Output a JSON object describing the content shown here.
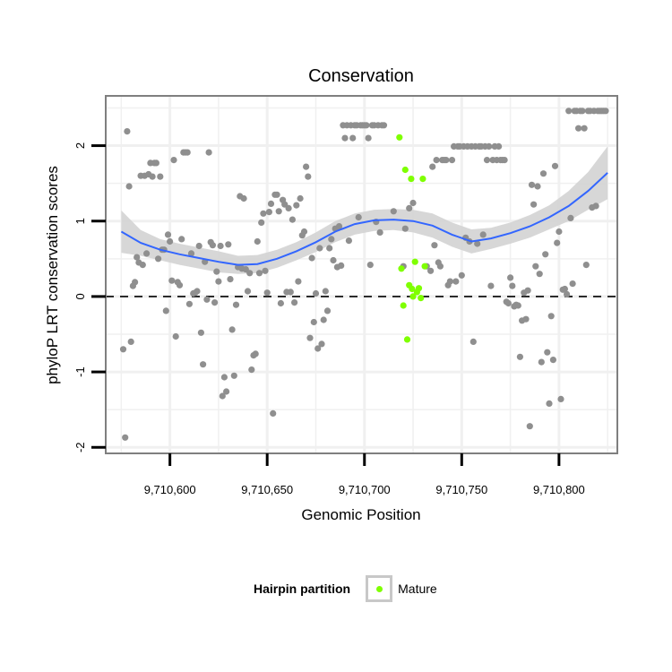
{
  "chart_data": {
    "type": "scatter",
    "title": "Conservation",
    "xlabel": "Genomic Position",
    "ylabel": "phyloP LRT conservation scores",
    "xlim": [
      9710567,
      9710830
    ],
    "ylim": [
      -2.08,
      2.66
    ],
    "x_ticks": [
      9710600,
      9710650,
      9710700,
      9710750,
      9710800
    ],
    "x_tick_labels": [
      "9,710,600",
      "9,710,650",
      "9,710,700",
      "9,710,750",
      "9,710,800"
    ],
    "y_ticks": [
      -2,
      -1,
      0,
      1,
      2
    ],
    "y_tick_labels": [
      "-2",
      "-1",
      "0",
      "1",
      "2"
    ],
    "grid": true,
    "reference_line": 0,
    "legend": {
      "title": "Hairpin partition",
      "position": "bottom",
      "entries": [
        "Mature"
      ]
    },
    "colors": {
      "background_points": "#8f8f8f",
      "mature": "#7fff00",
      "smooth_line": "#3366ff",
      "ribbon": "#d3d3d3",
      "grid": "#f0f0f0"
    },
    "series": [
      {
        "values": [
          [
            9710576,
            -0.7
          ],
          [
            9710577,
            -1.87
          ],
          [
            9710578,
            2.19
          ],
          [
            9710579,
            1.46
          ],
          [
            9710580,
            -0.6
          ],
          [
            9710581,
            0.14
          ],
          [
            9710582,
            0.19
          ],
          [
            9710583,
            0.52
          ],
          [
            9710584,
            0.45
          ],
          [
            9710585,
            1.6
          ],
          [
            9710586,
            0.42
          ],
          [
            9710587,
            1.6
          ],
          [
            9710588,
            0.57
          ],
          [
            9710589,
            1.62
          ],
          [
            9710590,
            1.77
          ],
          [
            9710591,
            1.59
          ],
          [
            9710592,
            1.77
          ],
          [
            9710593,
            1.77
          ],
          [
            9710594,
            0.5
          ],
          [
            9710595,
            1.59
          ],
          [
            9710596,
            0.62
          ],
          [
            9710597,
            0.62
          ],
          [
            9710598,
            -0.19
          ],
          [
            9710599,
            0.82
          ],
          [
            9710600,
            0.73
          ],
          [
            9710601,
            0.21
          ],
          [
            9710602,
            1.81
          ],
          [
            9710603,
            -0.53
          ],
          [
            9710604,
            0.19
          ],
          [
            9710605,
            0.15
          ],
          [
            9710606,
            0.76
          ],
          [
            9710607,
            1.91
          ],
          [
            9710608,
            1.91
          ],
          [
            9710609,
            1.91
          ],
          [
            9710610,
            -0.1
          ],
          [
            9710611,
            0.57
          ],
          [
            9710612,
            0.04
          ],
          [
            9710613,
            0.05
          ],
          [
            9710614,
            0.07
          ],
          [
            9710615,
            0.67
          ],
          [
            9710616,
            -0.48
          ],
          [
            9710617,
            -0.9
          ],
          [
            9710618,
            0.46
          ],
          [
            9710619,
            -0.04
          ],
          [
            9710620,
            1.91
          ],
          [
            9710621,
            0.72
          ],
          [
            9710622,
            0.68
          ],
          [
            9710623,
            -0.08
          ],
          [
            9710624,
            0.33
          ],
          [
            9710625,
            0.2
          ],
          [
            9710626,
            0.67
          ],
          [
            9710627,
            -1.32
          ],
          [
            9710628,
            -1.07
          ],
          [
            9710629,
            -1.26
          ],
          [
            9710630,
            0.69
          ],
          [
            9710631,
            0.23
          ],
          [
            9710632,
            -0.44
          ],
          [
            9710633,
            -1.05
          ],
          [
            9710634,
            -0.11
          ],
          [
            9710635,
            0.39
          ],
          [
            9710636,
            1.33
          ],
          [
            9710637,
            0.37
          ],
          [
            9710638,
            1.3
          ],
          [
            9710639,
            0.36
          ],
          [
            9710640,
            0.07
          ],
          [
            9710641,
            0.31
          ],
          [
            9710642,
            -0.97
          ],
          [
            9710643,
            -0.78
          ],
          [
            9710644,
            -0.76
          ],
          [
            9710645,
            0.73
          ],
          [
            9710646,
            0.31
          ],
          [
            9710647,
            0.98
          ],
          [
            9710648,
            1.1
          ],
          [
            9710649,
            0.34
          ],
          [
            9710650,
            0.05
          ],
          [
            9710651,
            1.12
          ],
          [
            9710652,
            1.23
          ],
          [
            9710653,
            -1.55
          ],
          [
            9710654,
            1.35
          ],
          [
            9710655,
            1.35
          ],
          [
            9710656,
            1.13
          ],
          [
            9710657,
            -0.09
          ],
          [
            9710658,
            1.28
          ],
          [
            9710659,
            1.22
          ],
          [
            9710660,
            0.06
          ],
          [
            9710661,
            1.17
          ],
          [
            9710662,
            0.06
          ],
          [
            9710663,
            1.02
          ],
          [
            9710664,
            -0.08
          ],
          [
            9710665,
            1.21
          ],
          [
            9710666,
            0.2
          ],
          [
            9710667,
            1.3
          ],
          [
            9710668,
            0.81
          ],
          [
            9710669,
            0.86
          ],
          [
            9710670,
            1.72
          ],
          [
            9710671,
            1.59
          ],
          [
            9710672,
            -0.55
          ],
          [
            9710673,
            0.51
          ],
          [
            9710674,
            -0.34
          ],
          [
            9710675,
            0.04
          ],
          [
            9710676,
            -0.69
          ],
          [
            9710677,
            0.64
          ],
          [
            9710678,
            -0.63
          ],
          [
            9710679,
            -0.31
          ],
          [
            9710680,
            0.07
          ],
          [
            9710681,
            -0.19
          ],
          [
            9710682,
            0.64
          ],
          [
            9710683,
            0.76
          ],
          [
            9710684,
            0.48
          ],
          [
            9710685,
            0.9
          ],
          [
            9710686,
            0.39
          ],
          [
            9710687,
            0.93
          ],
          [
            9710688,
            0.41
          ],
          [
            9710689,
            2.27
          ],
          [
            9710690,
            2.1
          ],
          [
            9710691,
            2.27
          ],
          [
            9710692,
            0.74
          ],
          [
            9710693,
            2.27
          ],
          [
            9710694,
            2.1
          ],
          [
            9710695,
            2.27
          ],
          [
            9710696,
            2.27
          ],
          [
            9710697,
            1.05
          ],
          [
            9710698,
            2.27
          ],
          [
            9710699,
            2.27
          ],
          [
            9710700,
            2.27
          ],
          [
            9710701,
            2.27
          ],
          [
            9710702,
            2.1
          ],
          [
            9710703,
            0.42
          ],
          [
            9710704,
            2.27
          ],
          [
            9710705,
            2.27
          ],
          [
            9710706,
            0.99
          ],
          [
            9710707,
            2.27
          ],
          [
            9710708,
            0.85
          ],
          [
            9710709,
            2.27
          ],
          [
            9710710,
            2.27
          ],
          [
            9710715,
            1.13
          ],
          [
            9710720,
            0.4
          ],
          [
            9710721,
            0.9
          ],
          [
            9710723,
            1.17
          ],
          [
            9710725,
            1.24
          ],
          [
            9710732,
            0.4
          ],
          [
            9710734,
            0.34
          ],
          [
            9710735,
            1.72
          ],
          [
            9710736,
            0.68
          ],
          [
            9710737,
            1.81
          ],
          [
            9710738,
            0.45
          ],
          [
            9710739,
            0.4
          ],
          [
            9710740,
            1.81
          ],
          [
            9710741,
            1.81
          ],
          [
            9710742,
            1.81
          ],
          [
            9710743,
            0.15
          ],
          [
            9710744,
            0.2
          ],
          [
            9710745,
            1.81
          ],
          [
            9710746,
            1.99
          ],
          [
            9710747,
            0.2
          ],
          [
            9710748,
            1.99
          ],
          [
            9710749,
            1.99
          ],
          [
            9710750,
            0.28
          ],
          [
            9710751,
            1.99
          ],
          [
            9710752,
            0.78
          ],
          [
            9710753,
            1.99
          ],
          [
            9710754,
            0.73
          ],
          [
            9710755,
            1.99
          ],
          [
            9710756,
            -0.6
          ],
          [
            9710757,
            1.99
          ],
          [
            9710758,
            0.7
          ],
          [
            9710759,
            1.99
          ],
          [
            9710760,
            1.99
          ],
          [
            9710761,
            0.82
          ],
          [
            9710762,
            1.99
          ],
          [
            9710763,
            1.81
          ],
          [
            9710764,
            1.99
          ],
          [
            9710765,
            0.14
          ],
          [
            9710766,
            1.81
          ],
          [
            9710767,
            1.99
          ],
          [
            9710768,
            1.81
          ],
          [
            9710769,
            1.99
          ],
          [
            9710770,
            1.81
          ],
          [
            9710771,
            1.81
          ],
          [
            9710772,
            1.81
          ],
          [
            9710773,
            -0.07
          ],
          [
            9710774,
            -0.09
          ],
          [
            9710775,
            0.25
          ],
          [
            9710776,
            0.14
          ],
          [
            9710777,
            -0.13
          ],
          [
            9710778,
            -0.11
          ],
          [
            9710779,
            -0.12
          ],
          [
            9710780,
            -0.8
          ],
          [
            9710781,
            -0.32
          ],
          [
            9710782,
            0.05
          ],
          [
            9710783,
            -0.3
          ],
          [
            9710784,
            0.08
          ],
          [
            9710785,
            -1.72
          ],
          [
            9710786,
            1.48
          ],
          [
            9710787,
            1.22
          ],
          [
            9710788,
            0.4
          ],
          [
            9710789,
            1.46
          ],
          [
            9710790,
            0.3
          ],
          [
            9710791,
            -0.87
          ],
          [
            9710792,
            1.63
          ],
          [
            9710793,
            0.56
          ],
          [
            9710794,
            -0.74
          ],
          [
            9710795,
            -1.42
          ],
          [
            9710796,
            -0.26
          ],
          [
            9710797,
            -0.84
          ],
          [
            9710798,
            1.73
          ],
          [
            9710799,
            0.71
          ],
          [
            9710800,
            0.86
          ],
          [
            9710801,
            -1.36
          ],
          [
            9710802,
            0.09
          ],
          [
            9710803,
            0.1
          ],
          [
            9710804,
            0.03
          ],
          [
            9710805,
            2.46
          ],
          [
            9710806,
            1.04
          ],
          [
            9710807,
            0.17
          ],
          [
            9710808,
            2.46
          ],
          [
            9710809,
            2.46
          ],
          [
            9710810,
            2.23
          ],
          [
            9710811,
            2.46
          ],
          [
            9710812,
            2.46
          ],
          [
            9710813,
            2.23
          ],
          [
            9710814,
            0.42
          ],
          [
            9710815,
            2.46
          ],
          [
            9710816,
            2.46
          ],
          [
            9710817,
            1.18
          ],
          [
            9710818,
            2.46
          ],
          [
            9710819,
            1.2
          ],
          [
            9710820,
            2.46
          ],
          [
            9710821,
            2.46
          ],
          [
            9710822,
            2.46
          ],
          [
            9710823,
            2.46
          ],
          [
            9710824,
            2.46
          ]
        ]
      },
      {
        "name": "Mature",
        "values": [
          [
            9710718,
            2.11
          ],
          [
            9710719,
            0.37
          ],
          [
            9710720,
            -0.12
          ],
          [
            9710721,
            1.68
          ],
          [
            9710722,
            -0.57
          ],
          [
            9710723,
            0.15
          ],
          [
            9710724,
            1.56
          ],
          [
            9710724.5,
            0.1
          ],
          [
            9710725,
            0.0
          ],
          [
            9710726,
            0.46
          ],
          [
            9710727,
            0.06
          ],
          [
            9710728,
            0.11
          ],
          [
            9710729,
            -0.02
          ],
          [
            9710730,
            1.56
          ],
          [
            9710731,
            0.4
          ]
        ]
      }
    ],
    "smooth": {
      "x": [
        9710575,
        9710585,
        9710595,
        9710605,
        9710615,
        9710625,
        9710635,
        9710645,
        9710655,
        9710665,
        9710675,
        9710685,
        9710695,
        9710705,
        9710715,
        9710725,
        9710735,
        9710745,
        9710755,
        9710765,
        9710775,
        9710785,
        9710795,
        9710805,
        9710815,
        9710825
      ],
      "y": [
        0.86,
        0.71,
        0.62,
        0.56,
        0.51,
        0.46,
        0.42,
        0.43,
        0.5,
        0.6,
        0.72,
        0.86,
        0.96,
        1.01,
        1.02,
        1.0,
        0.94,
        0.82,
        0.73,
        0.77,
        0.84,
        0.93,
        1.05,
        1.2,
        1.4,
        1.64
      ],
      "lower": [
        0.58,
        0.54,
        0.48,
        0.42,
        0.37,
        0.32,
        0.3,
        0.31,
        0.38,
        0.48,
        0.59,
        0.72,
        0.82,
        0.87,
        0.88,
        0.85,
        0.78,
        0.66,
        0.57,
        0.63,
        0.7,
        0.78,
        0.89,
        1.0,
        1.15,
        1.29
      ],
      "upper": [
        1.14,
        0.88,
        0.76,
        0.7,
        0.65,
        0.6,
        0.54,
        0.55,
        0.62,
        0.72,
        0.85,
        1.0,
        1.1,
        1.15,
        1.16,
        1.15,
        1.1,
        0.98,
        0.89,
        0.91,
        0.98,
        1.08,
        1.21,
        1.4,
        1.65,
        1.99
      ]
    }
  }
}
